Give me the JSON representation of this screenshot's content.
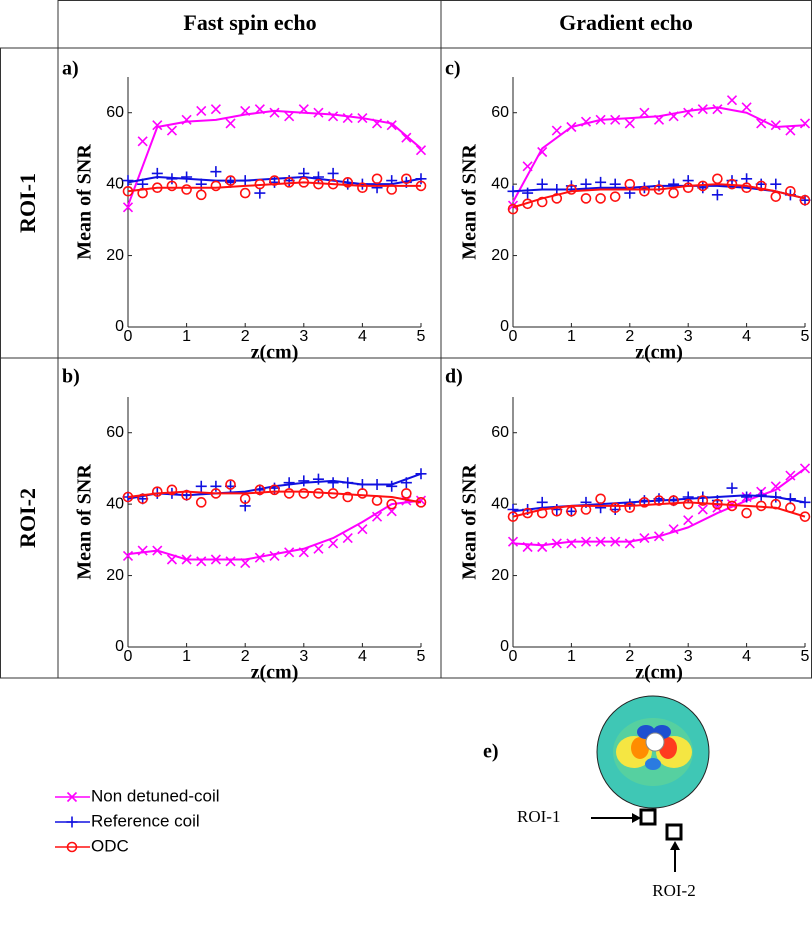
{
  "header": {
    "columns": [
      "Fast spin echo",
      "Gradient echo"
    ],
    "rows": [
      "ROI-1",
      "ROI-2"
    ]
  },
  "legend": [
    {
      "name": "Non detuned-coil",
      "color": "#ff00ff",
      "marker": "x"
    },
    {
      "name": "Reference coil",
      "color": "#1010e0",
      "marker": "+"
    },
    {
      "name": "ODC",
      "color": "#ff1010",
      "marker": "o"
    }
  ],
  "chart_data": [
    {
      "type": "line",
      "title": "a)",
      "xlabel": "z(cm)",
      "ylabel": "Mean of SNR",
      "xlim": [
        0,
        5
      ],
      "ylim": [
        0,
        70
      ],
      "xticks": [
        0,
        1,
        2,
        3,
        4,
        5
      ],
      "yticks": [
        0,
        20,
        40,
        60
      ],
      "x": [
        0,
        0.25,
        0.5,
        0.75,
        1,
        1.25,
        1.5,
        1.75,
        2,
        2.25,
        2.5,
        2.75,
        3,
        3.25,
        3.5,
        3.75,
        4,
        4.25,
        4.5,
        4.75,
        5
      ],
      "fit_x": [
        0,
        0.5,
        1,
        1.5,
        2,
        2.5,
        3,
        3.5,
        4,
        4.5,
        5
      ],
      "series": [
        {
          "values": [
            33.5,
            52,
            56.5,
            55,
            58,
            60.5,
            61,
            57,
            60.5,
            61,
            60,
            59,
            61,
            60,
            59,
            58.5,
            58.5,
            57,
            56.5,
            53,
            49.5
          ],
          "fit": [
            34,
            56,
            57.5,
            58,
            59.5,
            60.5,
            60,
            59.5,
            58.5,
            57,
            50
          ]
        },
        {
          "values": [
            41,
            40,
            43,
            41.5,
            42,
            40,
            43.5,
            40.5,
            41,
            37.5,
            40.5,
            41,
            43,
            42,
            43,
            40,
            40,
            39,
            41,
            40.5,
            41.5
          ],
          "fit": [
            40.5,
            42,
            41.5,
            41,
            41,
            41.5,
            42,
            41,
            40,
            40,
            41.5
          ]
        },
        {
          "values": [
            38,
            37.5,
            39,
            39.5,
            38.5,
            37,
            39.5,
            41,
            37.5,
            40,
            41,
            40.5,
            40.5,
            40,
            40,
            40.5,
            39,
            41.5,
            38.5,
            41.5,
            39.5
          ],
          "fit": [
            38,
            39,
            39,
            39,
            39.5,
            40,
            40.5,
            40,
            39.5,
            39.5,
            39.5
          ]
        }
      ]
    },
    {
      "type": "line",
      "title": "c)",
      "xlabel": "z(cm)",
      "ylabel": "Mean of SNR",
      "xlim": [
        0,
        5
      ],
      "ylim": [
        0,
        70
      ],
      "xticks": [
        0,
        1,
        2,
        3,
        4,
        5
      ],
      "yticks": [
        0,
        20,
        40,
        60
      ],
      "x": [
        0,
        0.25,
        0.5,
        0.75,
        1,
        1.25,
        1.5,
        1.75,
        2,
        2.25,
        2.5,
        2.75,
        3,
        3.25,
        3.5,
        3.75,
        4,
        4.25,
        4.5,
        4.75,
        5
      ],
      "fit_x": [
        0,
        0.5,
        1,
        1.5,
        2,
        2.5,
        3,
        3.5,
        4,
        4.5,
        5
      ],
      "series": [
        {
          "values": [
            34,
            45,
            49,
            55,
            56,
            57.5,
            58,
            58,
            57,
            60,
            58,
            59,
            60,
            61,
            61,
            63.5,
            61.5,
            57,
            56.5,
            55,
            57
          ],
          "fit": [
            35,
            50,
            56,
            58,
            58.5,
            59,
            60.5,
            61.5,
            60,
            56,
            56.5
          ]
        },
        {
          "values": [
            38,
            37.5,
            40,
            38.5,
            39.5,
            40,
            40.5,
            40,
            37.5,
            39,
            39.5,
            40,
            41,
            39,
            37,
            41,
            41.5,
            40,
            40,
            37,
            35.5
          ],
          "fit": [
            38,
            38.5,
            38.5,
            39,
            39,
            39.5,
            39.5,
            39.5,
            39,
            38,
            36
          ]
        },
        {
          "values": [
            33,
            34.5,
            35,
            36,
            38.5,
            36,
            36,
            36.5,
            40,
            38,
            38.5,
            37.5,
            39,
            39.5,
            41.5,
            40,
            39,
            39.5,
            36.5,
            38,
            35.5
          ],
          "fit": [
            33.5,
            36,
            38,
            38.5,
            38.5,
            38.5,
            39.5,
            40,
            39.5,
            38,
            36
          ]
        }
      ]
    },
    {
      "type": "line",
      "title": "b)",
      "xlabel": "z(cm)",
      "ylabel": "Mean of SNR",
      "xlim": [
        0,
        5
      ],
      "ylim": [
        0,
        70
      ],
      "xticks": [
        0,
        1,
        2,
        3,
        4,
        5
      ],
      "yticks": [
        0,
        20,
        40,
        60
      ],
      "x": [
        0,
        0.25,
        0.5,
        0.75,
        1,
        1.25,
        1.5,
        1.75,
        2,
        2.25,
        2.5,
        2.75,
        3,
        3.25,
        3.5,
        3.75,
        4,
        4.25,
        4.5,
        4.75,
        5
      ],
      "fit_x": [
        0,
        0.5,
        1,
        1.5,
        2,
        2.5,
        3,
        3.5,
        4,
        4.5,
        5
      ],
      "series": [
        {
          "values": [
            25.5,
            27,
            27,
            24.5,
            24.5,
            24,
            24.5,
            24,
            23.5,
            25,
            25.5,
            26.5,
            26.5,
            27.5,
            29,
            30.5,
            33,
            36.5,
            38,
            41,
            41
          ],
          "fit": [
            26,
            27,
            24.5,
            24.5,
            24.5,
            26,
            27.5,
            30.5,
            35,
            40,
            41
          ]
        },
        {
          "values": [
            42,
            41.5,
            43,
            43,
            42.5,
            45,
            45,
            45,
            39.5,
            44,
            44.5,
            46,
            46.5,
            47,
            46,
            46,
            45.5,
            45.5,
            45,
            46,
            48.5
          ],
          "fit": [
            41.5,
            43,
            42.5,
            43,
            43.5,
            45,
            46,
            46.5,
            45.5,
            45.5,
            48.5
          ]
        },
        {
          "values": [
            42,
            41.5,
            43.5,
            44,
            42.5,
            40.5,
            43,
            45.5,
            41.5,
            44,
            44,
            43,
            43,
            43,
            43,
            42,
            43,
            41,
            40,
            43,
            40.5
          ],
          "fit": [
            42,
            43,
            43.5,
            43,
            43,
            43.5,
            43.5,
            43,
            42.5,
            42,
            40.5
          ]
        }
      ]
    },
    {
      "type": "line",
      "title": "d)",
      "xlabel": "z(cm)",
      "ylabel": "Mean of SNR",
      "xlim": [
        0,
        5
      ],
      "ylim": [
        0,
        70
      ],
      "xticks": [
        0,
        1,
        2,
        3,
        4,
        5
      ],
      "yticks": [
        0,
        20,
        40,
        60
      ],
      "x": [
        0,
        0.25,
        0.5,
        0.75,
        1,
        1.25,
        1.5,
        1.75,
        2,
        2.25,
        2.5,
        2.75,
        3,
        3.25,
        3.5,
        3.75,
        4,
        4.25,
        4.5,
        4.75,
        5
      ],
      "fit_x": [
        0,
        0.5,
        1,
        1.5,
        2,
        2.5,
        3,
        3.5,
        4,
        4.5,
        5
      ],
      "series": [
        {
          "values": [
            29.5,
            28,
            28,
            29,
            29,
            29.5,
            29.5,
            29.5,
            29,
            30.5,
            31,
            33,
            35.5,
            38.5,
            39,
            40,
            42,
            43.5,
            45,
            48,
            50
          ],
          "fit": [
            29,
            28.5,
            29.5,
            29.5,
            29.5,
            31,
            33.5,
            37.5,
            41,
            44,
            50
          ]
        },
        {
          "values": [
            38.5,
            38.5,
            40.5,
            38.5,
            38,
            40.5,
            39,
            38.5,
            40,
            41,
            41.5,
            41,
            42,
            42,
            41,
            44.5,
            42,
            42.5,
            42,
            41.5,
            40.5
          ],
          "fit": [
            38,
            39,
            39.5,
            40,
            40.5,
            41,
            41.5,
            42,
            42.5,
            42,
            40.5
          ]
        },
        {
          "values": [
            36.5,
            37.5,
            37.5,
            38,
            38,
            38.5,
            41.5,
            39,
            39,
            40.5,
            41,
            41,
            40,
            41,
            40,
            39.5,
            37.5,
            39.5,
            40,
            39,
            36.5
          ],
          "fit": [
            36.5,
            38.5,
            39.5,
            39.5,
            39.5,
            40,
            40.5,
            40,
            39.5,
            39,
            36.5
          ]
        }
      ]
    }
  ],
  "inset": {
    "label": "e)",
    "roi_1": "ROI-1",
    "roi_2": "ROI-2"
  }
}
